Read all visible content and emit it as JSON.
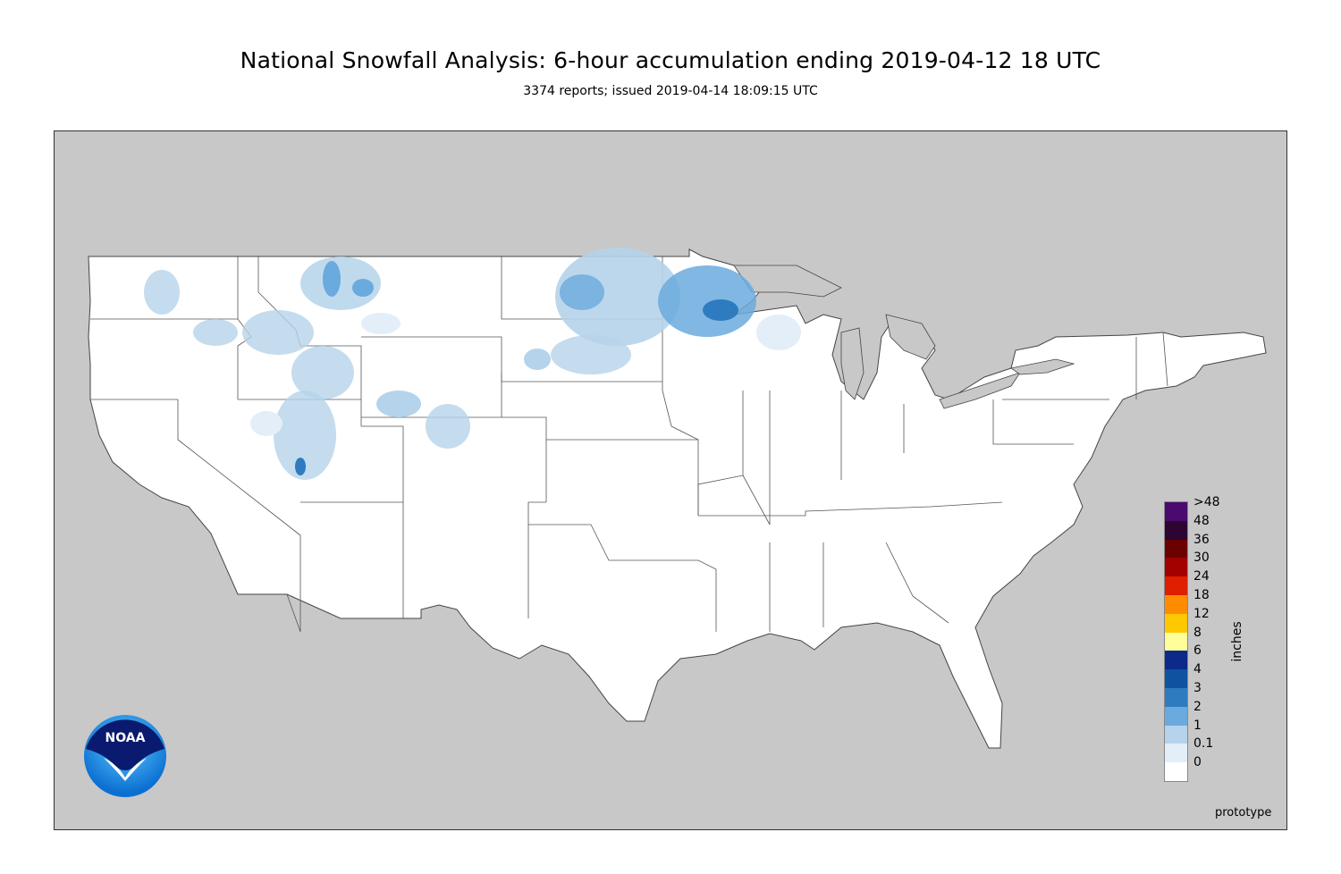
{
  "header": {
    "title": "National Snowfall Analysis: 6-hour accumulation ending 2019-04-12 18 UTC",
    "subtitle": "3374 reports; issued 2019-04-14 18:09:15 UTC"
  },
  "map": {
    "background_color": "#c8c8c8",
    "land_color": "#ffffff",
    "border_color": "#555555"
  },
  "legend": {
    "unit": "inches",
    "levels": [
      {
        "label": ">48",
        "color": "#4b0a6e"
      },
      {
        "label": "48",
        "color": "#2e0433"
      },
      {
        "label": "36",
        "color": "#6b0000"
      },
      {
        "label": "30",
        "color": "#a30000"
      },
      {
        "label": "24",
        "color": "#e01e00"
      },
      {
        "label": "18",
        "color": "#ff8c00"
      },
      {
        "label": "12",
        "color": "#ffc800"
      },
      {
        "label": "8",
        "color": "#fffe9a"
      },
      {
        "label": "6",
        "color": "#0c2a8a"
      },
      {
        "label": "4",
        "color": "#0e52a0"
      },
      {
        "label": "3",
        "color": "#2f7bbf"
      },
      {
        "label": "2",
        "color": "#6aaade"
      },
      {
        "label": "1",
        "color": "#b5d3ea"
      },
      {
        "label": "0.1",
        "color": "#e3eef8"
      },
      {
        "label": "0",
        "color": "#ffffff"
      }
    ]
  },
  "logo": {
    "text": "NOAA",
    "icon": "noaa-logo-icon"
  },
  "footer_note": "prototype"
}
